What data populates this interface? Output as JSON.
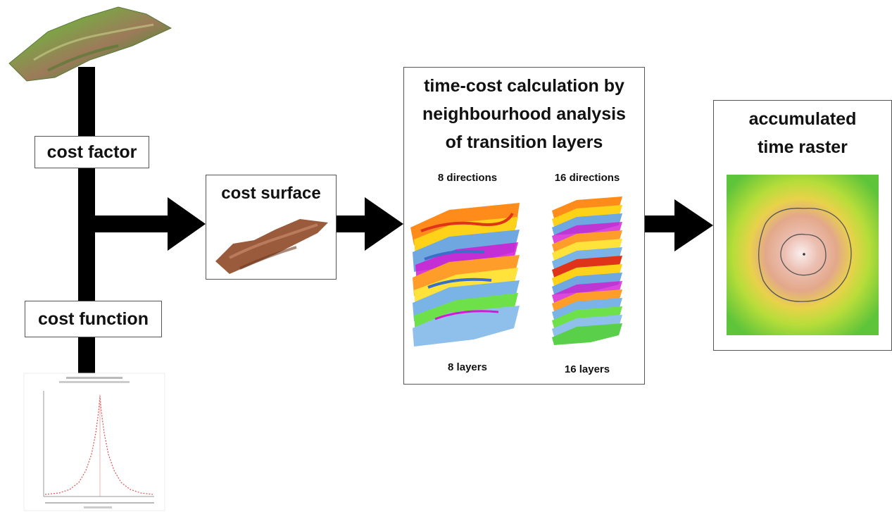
{
  "nodes": {
    "cost_factor": "cost factor",
    "cost_function": "cost function",
    "cost_surface": "cost surface",
    "time_cost": {
      "title_line1": "time-cost calculation by",
      "title_line2": "neighbourhood analysis",
      "title_line3": "of transition layers",
      "col8_header": "8 directions",
      "col16_header": "16 directions",
      "col8_footer": "8 layers",
      "col16_footer": "16 layers"
    },
    "accumulated": {
      "title_line1": "accumulated",
      "title_line2": "time raster"
    }
  },
  "colors": {
    "arrow": "#000000",
    "terrain_green": "#6f9a3c",
    "cost_surface_brown": "#9a5a3c",
    "raster_outer": "#7ac943",
    "raster_mid": "#e8d94a",
    "raster_inner": "#e9b8a8",
    "curve_red": "#e06060"
  },
  "icons": [
    "terrain-image",
    "cost-surface-image",
    "transition-layer-stack",
    "accumulated-raster-image",
    "cost-function-plot"
  ]
}
